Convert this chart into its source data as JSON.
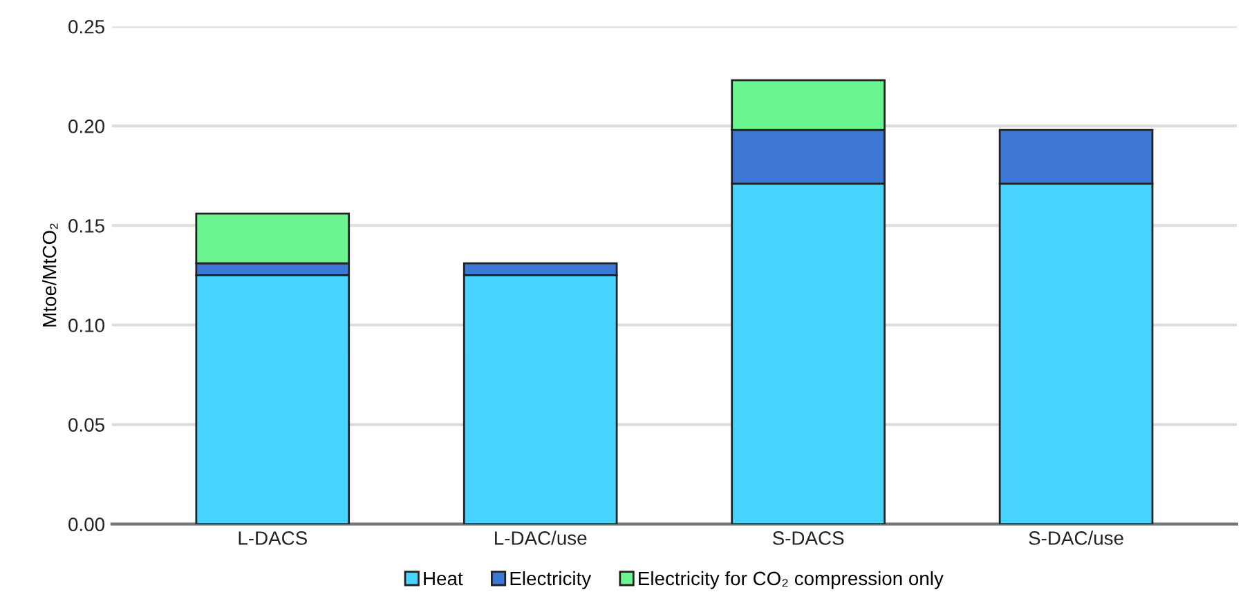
{
  "chart_data": {
    "type": "bar",
    "stacked": true,
    "ylabel": "Mtoe/MtCO₂",
    "categories": [
      "L-DACS",
      "L-DAC/use",
      "S-DACS",
      "S-DAC/use"
    ],
    "series": [
      {
        "name": "Heat",
        "color": "#48d4fe",
        "values": [
          0.125,
          0.125,
          0.171,
          0.171
        ]
      },
      {
        "name": "Electricity",
        "color": "#3c78d4",
        "values": [
          0.006,
          0.006,
          0.027,
          0.027
        ]
      },
      {
        "name": "Electricity for CO₂ compression only",
        "color": "#6bf590",
        "values": [
          0.025,
          null,
          0.025,
          null
        ]
      }
    ],
    "ylim": [
      0,
      0.25
    ],
    "yticks": [
      {
        "value": 0,
        "label": "0.00"
      },
      {
        "value": 0.05,
        "label": "0.05"
      },
      {
        "value": 0.1,
        "label": "0.10"
      },
      {
        "value": 0.15,
        "label": "0.15"
      },
      {
        "value": 0.2,
        "label": "0.20"
      },
      {
        "value": 0.25,
        "label": "0.25"
      }
    ],
    "grid": "y",
    "legend": "bottom"
  }
}
